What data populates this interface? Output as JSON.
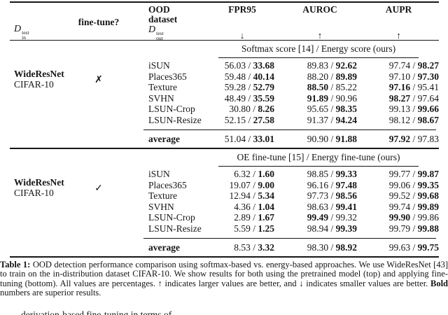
{
  "table": {
    "header": {
      "in_dist": {
        "symbol": "D",
        "sup": "test",
        "sub": "in"
      },
      "finetune": "fine-tune?",
      "ood_line1": "OOD",
      "ood_line2": "dataset",
      "out_dist": {
        "symbol": "D",
        "sup": "test",
        "sub": "out"
      },
      "metrics": [
        {
          "label": "FPR95",
          "arrow": "↓"
        },
        {
          "label": "AUROC",
          "arrow": "↑"
        },
        {
          "label": "AUPR",
          "arrow": "↑"
        }
      ]
    },
    "blocks": [
      {
        "model": "WideResNet",
        "in_dataset": "CIFAR-10",
        "finetune_mark": "✗",
        "method_header": "Softmax score [14] / Energy score (ours)",
        "rows": [
          {
            "dataset": "iSUN",
            "fpr95": {
              "a": "56.03",
              "b": "33.68",
              "bold": "b"
            },
            "auroc": {
              "a": "89.83",
              "b": "92.62",
              "bold": "b"
            },
            "aupr": {
              "a": "97.74",
              "b": "98.27",
              "bold": "b"
            }
          },
          {
            "dataset": "Places365",
            "fpr95": {
              "a": "59.48",
              "b": "40.14",
              "bold": "b"
            },
            "auroc": {
              "a": "88.20",
              "b": "89.89",
              "bold": "b"
            },
            "aupr": {
              "a": "97.10",
              "b": "97.30",
              "bold": "b"
            }
          },
          {
            "dataset": "Texture",
            "fpr95": {
              "a": "59.28",
              "b": "52.79",
              "bold": "b"
            },
            "auroc": {
              "a": "88.50",
              "b": "85.22",
              "bold": "a"
            },
            "aupr": {
              "a": "97.16",
              "b": "95.41",
              "bold": "a"
            }
          },
          {
            "dataset": "SVHN",
            "fpr95": {
              "a": "48.49",
              "b": "35.59",
              "bold": "b"
            },
            "auroc": {
              "a": "91.89",
              "b": "90.96",
              "bold": "a"
            },
            "aupr": {
              "a": "98.27",
              "b": "97.64",
              "bold": "a"
            }
          },
          {
            "dataset": "LSUN-Crop",
            "fpr95": {
              "a": "30.80",
              "b": "8.26",
              "bold": "b"
            },
            "auroc": {
              "a": "95.65",
              "b": "98.35",
              "bold": "b"
            },
            "aupr": {
              "a": "99.13",
              "b": "99.66",
              "bold": "b"
            }
          },
          {
            "dataset": "LSUN-Resize",
            "fpr95": {
              "a": "52.15",
              "b": "27.58",
              "bold": "b"
            },
            "auroc": {
              "a": "91.37",
              "b": "94.24",
              "bold": "b"
            },
            "aupr": {
              "a": "98.12",
              "b": "98.67",
              "bold": "b"
            }
          }
        ],
        "average": {
          "label": "average",
          "fpr95": {
            "a": "51.04",
            "b": "33.01",
            "bold": "b"
          },
          "auroc": {
            "a": "90.90",
            "b": "91.88",
            "bold": "b"
          },
          "aupr": {
            "a": "97.92",
            "b": "97.83",
            "bold": "a"
          }
        }
      },
      {
        "model": "WideResNet",
        "in_dataset": "CIFAR-10",
        "finetune_mark": "✓",
        "method_header": "OE fine-tune [15] / Energy fine-tune (ours)",
        "rows": [
          {
            "dataset": "iSUN",
            "fpr95": {
              "a": "6.32",
              "b": "1.60",
              "bold": "b"
            },
            "auroc": {
              "a": "98.85",
              "b": "99.33",
              "bold": "b"
            },
            "aupr": {
              "a": "99.77",
              "b": "99.87",
              "bold": "b"
            }
          },
          {
            "dataset": "Places365",
            "fpr95": {
              "a": "19.07",
              "b": "9.00",
              "bold": "b"
            },
            "auroc": {
              "a": "96.16",
              "b": "97.48",
              "bold": "b"
            },
            "aupr": {
              "a": "99.06",
              "b": "99.35",
              "bold": "b"
            }
          },
          {
            "dataset": "Texture",
            "fpr95": {
              "a": "12.94",
              "b": "5.34",
              "bold": "b"
            },
            "auroc": {
              "a": "97.73",
              "b": "98.56",
              "bold": "b"
            },
            "aupr": {
              "a": "99.52",
              "b": "99.68",
              "bold": "b"
            }
          },
          {
            "dataset": "SVHN",
            "fpr95": {
              "a": "4.36",
              "b": "1.04",
              "bold": "b"
            },
            "auroc": {
              "a": "98.63",
              "b": "99.41",
              "bold": "b"
            },
            "aupr": {
              "a": "99.74",
              "b": "99.89",
              "bold": "b"
            }
          },
          {
            "dataset": "LSUN-Crop",
            "fpr95": {
              "a": "2.89",
              "b": "1.67",
              "bold": "b"
            },
            "auroc": {
              "a": "99.49",
              "b": "99.32",
              "bold": "a"
            },
            "aupr": {
              "a": "99.90",
              "b": "99.86",
              "bold": "a"
            }
          },
          {
            "dataset": "LSUN-Resize",
            "fpr95": {
              "a": "5.59",
              "b": "1.25",
              "bold": "b"
            },
            "auroc": {
              "a": "98.94",
              "b": "99.39",
              "bold": "b"
            },
            "aupr": {
              "a": "99.79",
              "b": "99.88",
              "bold": "b"
            }
          }
        ],
        "average": {
          "label": "average",
          "fpr95": {
            "a": "8.53",
            "b": "3.32",
            "bold": "b"
          },
          "auroc": {
            "a": "98.30",
            "b": "98.92",
            "bold": "b"
          },
          "aupr": {
            "a": "99.63",
            "b": "99.75",
            "bold": "b"
          }
        }
      }
    ]
  },
  "caption": {
    "segments": [
      {
        "text": "Table 1: ",
        "bold": true
      },
      {
        "text": "OOD detection performance comparison using softmax-based vs. energy-based approaches. We use WideResNet [43] to train on the in-distribution dataset CIFAR-10. We show results for both using the pretrained model (top) and applying fine-tuning (bottom). All values are percentages. ↑ indicates larger values are better, and ↓ indicates smaller values are better. ",
        "bold": false
      },
      {
        "text": "Bold",
        "bold": true
      },
      {
        "text": " numbers are superior results.",
        "bold": false
      }
    ]
  },
  "clipped_line": "derivation-based fine-tuning in terms of"
}
